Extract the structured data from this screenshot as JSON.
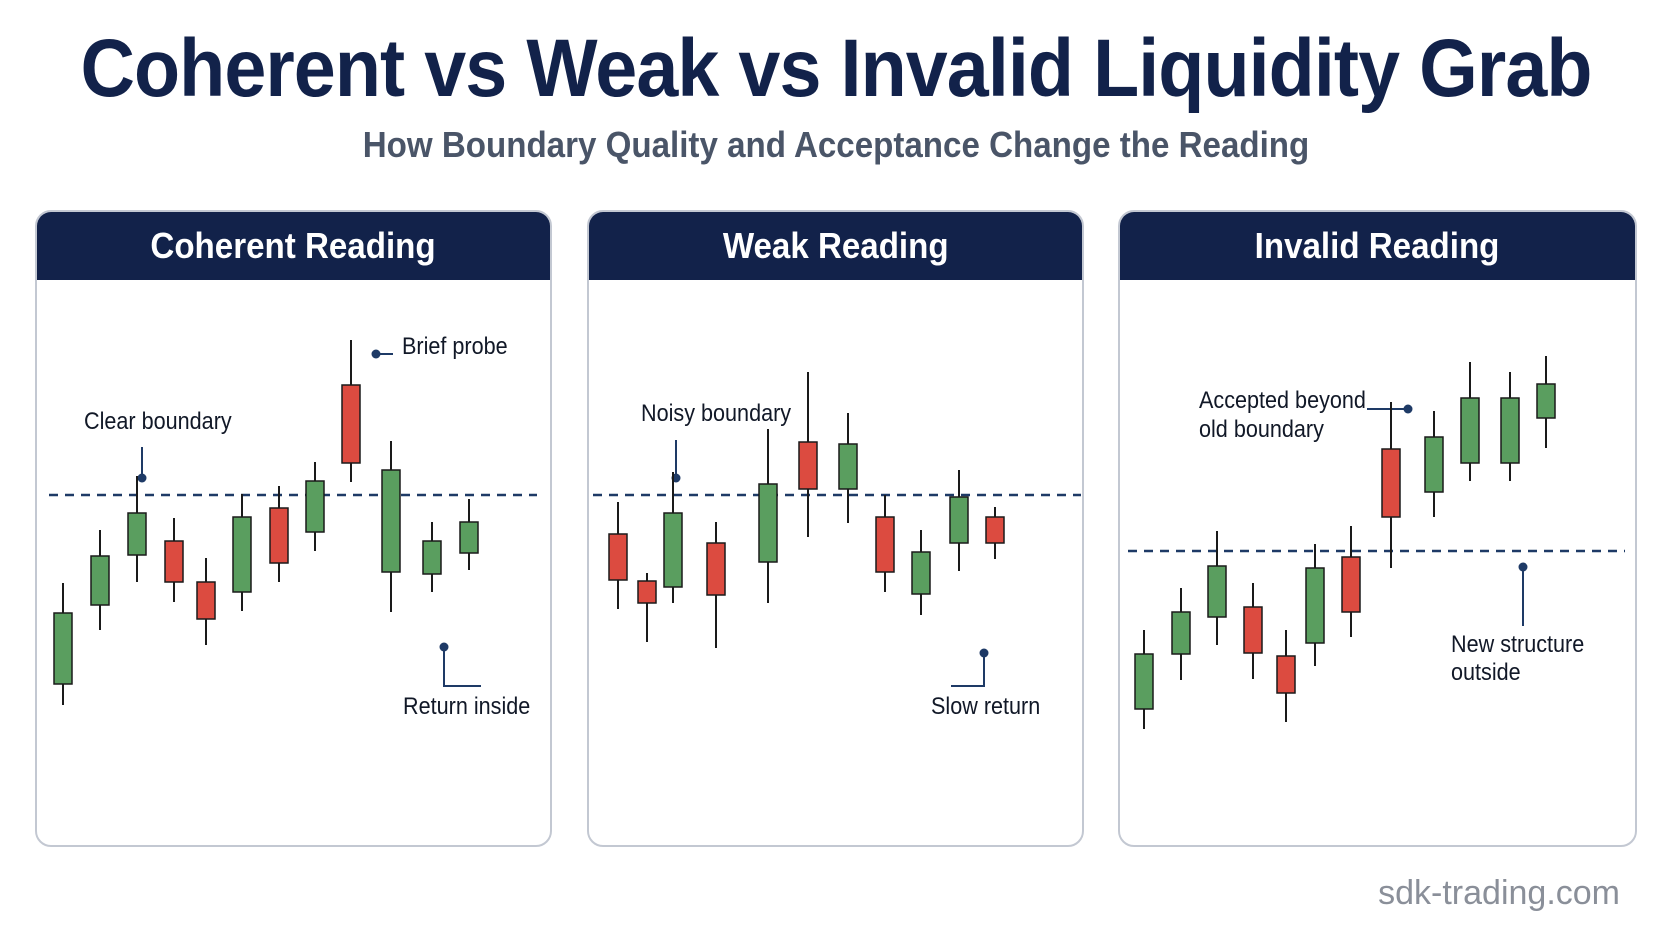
{
  "header": {
    "title": "Coherent vs Weak vs Invalid Liquidity Grab",
    "subtitle": "How Boundary Quality and Acceptance Change the Reading"
  },
  "colors": {
    "navy": "#12224a",
    "bull": "#5a9e5f",
    "bear": "#dc4b40",
    "boundary": "#1e3a66"
  },
  "panels": [
    {
      "title": "Coherent Reading",
      "annotations": {
        "boundary": "Clear boundary",
        "probe": "Brief probe",
        "return": "Return inside"
      }
    },
    {
      "title": "Weak Reading",
      "annotations": {
        "boundary": "Noisy boundary",
        "return": "Slow return"
      }
    },
    {
      "title": "Invalid Reading",
      "annotations": {
        "accepted_line1": "Accepted beyond",
        "accepted_line2": "old boundary",
        "structure_line1": "New structure",
        "structure_line2": "outside"
      }
    }
  ],
  "footer": {
    "site": "sdk-trading.com"
  }
}
